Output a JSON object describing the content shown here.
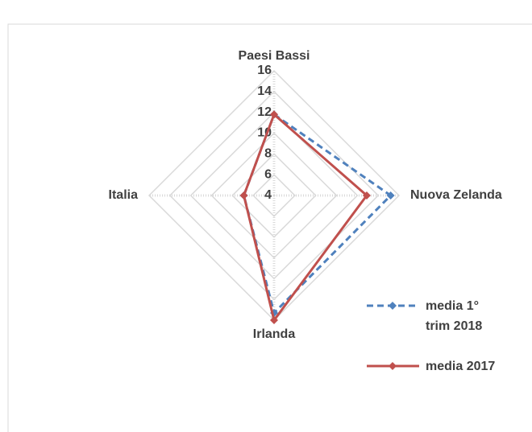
{
  "chart_data": {
    "type": "radar",
    "categories": [
      "Paesi Bassi",
      "Nuova Zelanda",
      "Irlanda",
      "Italia"
    ],
    "series": [
      {
        "name": "media 1° trim 2018",
        "color": "#4f81bd",
        "dash": true,
        "values": [
          11.8,
          15.2,
          15.3,
          6.9
        ]
      },
      {
        "name": "media 2017",
        "color": "#c0504d",
        "dash": false,
        "values": [
          11.8,
          12.9,
          16,
          6.9
        ]
      }
    ],
    "rlim": [
      4,
      16
    ],
    "rticks": [
      4,
      6,
      8,
      10,
      12,
      14,
      16
    ],
    "grid": true
  }
}
